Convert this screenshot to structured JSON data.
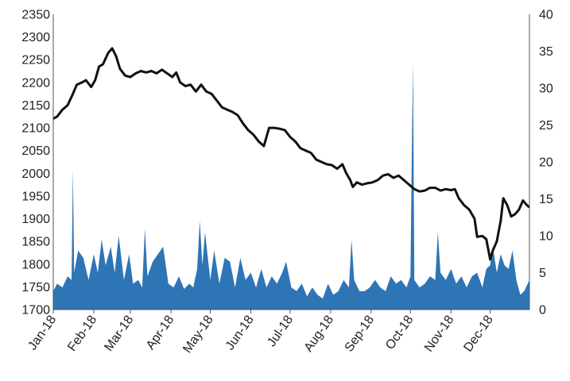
{
  "chart_data": {
    "type": "line+area",
    "title": "",
    "grid": false,
    "colors": {
      "line": "#111111",
      "area": "#2e75b6",
      "axis": "#555555"
    },
    "x_domain": [
      "2018-01-01",
      "2018-12-31"
    ],
    "x_tick_labels": [
      {
        "label": "Jan-18",
        "date": "2018-01-01"
      },
      {
        "label": "Feb-18",
        "date": "2018-02-01"
      },
      {
        "label": "Mar-18",
        "date": "2018-03-01"
      },
      {
        "label": "Apr-18",
        "date": "2018-04-01"
      },
      {
        "label": "May-18",
        "date": "2018-05-01"
      },
      {
        "label": "Jun-18",
        "date": "2018-06-01"
      },
      {
        "label": "Jul-18",
        "date": "2018-07-01"
      },
      {
        "label": "Aug-18",
        "date": "2018-08-01"
      },
      {
        "label": "Sep-18",
        "date": "2018-09-01"
      },
      {
        "label": "Oct-18",
        "date": "2018-10-01"
      },
      {
        "label": "Nov-18",
        "date": "2018-11-01"
      },
      {
        "label": "Dec-18",
        "date": "2018-12-01"
      }
    ],
    "y_left": {
      "ylim": [
        1700,
        2350
      ],
      "ticks": [
        "1700",
        "1750",
        "1800",
        "1850",
        "1900",
        "1950",
        "2000",
        "2050",
        "2100",
        "2150",
        "2200",
        "2250",
        "2300",
        "2350"
      ]
    },
    "y_right": {
      "ylim": [
        0,
        40
      ],
      "ticks": [
        "0",
        "5",
        "10",
        "15",
        "20",
        "25",
        "30",
        "35",
        "40"
      ]
    },
    "series": [
      {
        "kind": "line",
        "axis": "left",
        "points": [
          [
            "2018-01-01",
            2120
          ],
          [
            "2018-01-04",
            2125
          ],
          [
            "2018-01-08",
            2140
          ],
          [
            "2018-01-12",
            2150
          ],
          [
            "2018-01-16",
            2175
          ],
          [
            "2018-01-19",
            2195
          ],
          [
            "2018-01-23",
            2200
          ],
          [
            "2018-01-26",
            2205
          ],
          [
            "2018-01-30",
            2190
          ],
          [
            "2018-02-02",
            2205
          ],
          [
            "2018-02-05",
            2235
          ],
          [
            "2018-02-08",
            2240
          ],
          [
            "2018-02-12",
            2265
          ],
          [
            "2018-02-15",
            2275
          ],
          [
            "2018-02-18",
            2258
          ],
          [
            "2018-02-21",
            2230
          ],
          [
            "2018-02-25",
            2215
          ],
          [
            "2018-03-01",
            2212
          ],
          [
            "2018-03-05",
            2220
          ],
          [
            "2018-03-09",
            2225
          ],
          [
            "2018-03-13",
            2222
          ],
          [
            "2018-03-17",
            2225
          ],
          [
            "2018-03-21",
            2220
          ],
          [
            "2018-03-25",
            2228
          ],
          [
            "2018-03-29",
            2220
          ],
          [
            "2018-04-02",
            2212
          ],
          [
            "2018-04-05",
            2222
          ],
          [
            "2018-04-08",
            2200
          ],
          [
            "2018-04-12",
            2192
          ],
          [
            "2018-04-16",
            2195
          ],
          [
            "2018-04-20",
            2180
          ],
          [
            "2018-04-24",
            2195
          ],
          [
            "2018-04-28",
            2180
          ],
          [
            "2018-05-02",
            2175
          ],
          [
            "2018-05-06",
            2160
          ],
          [
            "2018-05-10",
            2145
          ],
          [
            "2018-05-14",
            2140
          ],
          [
            "2018-05-18",
            2135
          ],
          [
            "2018-05-22",
            2128
          ],
          [
            "2018-05-26",
            2110
          ],
          [
            "2018-05-30",
            2095
          ],
          [
            "2018-06-03",
            2085
          ],
          [
            "2018-06-07",
            2070
          ],
          [
            "2018-06-11",
            2060
          ],
          [
            "2018-06-15",
            2100
          ],
          [
            "2018-06-19",
            2100
          ],
          [
            "2018-06-23",
            2098
          ],
          [
            "2018-06-27",
            2095
          ],
          [
            "2018-07-01",
            2080
          ],
          [
            "2018-07-05",
            2070
          ],
          [
            "2018-07-09",
            2055
          ],
          [
            "2018-07-13",
            2050
          ],
          [
            "2018-07-17",
            2045
          ],
          [
            "2018-07-21",
            2030
          ],
          [
            "2018-07-25",
            2025
          ],
          [
            "2018-07-29",
            2020
          ],
          [
            "2018-08-02",
            2018
          ],
          [
            "2018-08-06",
            2010
          ],
          [
            "2018-08-10",
            2020
          ],
          [
            "2018-08-13",
            2000
          ],
          [
            "2018-08-16",
            1985
          ],
          [
            "2018-08-18",
            1970
          ],
          [
            "2018-08-21",
            1980
          ],
          [
            "2018-08-25",
            1975
          ],
          [
            "2018-08-29",
            1978
          ],
          [
            "2018-09-02",
            1980
          ],
          [
            "2018-09-06",
            1985
          ],
          [
            "2018-09-10",
            1995
          ],
          [
            "2018-09-14",
            1998
          ],
          [
            "2018-09-18",
            1990
          ],
          [
            "2018-09-22",
            1995
          ],
          [
            "2018-09-26",
            1985
          ],
          [
            "2018-09-30",
            1975
          ],
          [
            "2018-10-04",
            1965
          ],
          [
            "2018-10-08",
            1960
          ],
          [
            "2018-10-12",
            1962
          ],
          [
            "2018-10-16",
            1968
          ],
          [
            "2018-10-20",
            1968
          ],
          [
            "2018-10-24",
            1962
          ],
          [
            "2018-10-28",
            1965
          ],
          [
            "2018-11-01",
            1963
          ],
          [
            "2018-11-04",
            1965
          ],
          [
            "2018-11-07",
            1945
          ],
          [
            "2018-11-11",
            1930
          ],
          [
            "2018-11-15",
            1920
          ],
          [
            "2018-11-19",
            1900
          ],
          [
            "2018-11-21",
            1860
          ],
          [
            "2018-11-25",
            1862
          ],
          [
            "2018-11-28",
            1855
          ],
          [
            "2018-12-01",
            1810
          ],
          [
            "2018-12-03",
            1830
          ],
          [
            "2018-12-06",
            1850
          ],
          [
            "2018-12-09",
            1895
          ],
          [
            "2018-12-11",
            1945
          ],
          [
            "2018-12-14",
            1930
          ],
          [
            "2018-12-17",
            1905
          ],
          [
            "2018-12-20",
            1910
          ],
          [
            "2018-12-23",
            1920
          ],
          [
            "2018-12-26",
            1940
          ],
          [
            "2018-12-29",
            1930
          ],
          [
            "2018-12-31",
            1925
          ]
        ]
      },
      {
        "kind": "area",
        "axis": "right",
        "points": [
          [
            "2018-01-01",
            2.5
          ],
          [
            "2018-01-04",
            3.5
          ],
          [
            "2018-01-08",
            3.0
          ],
          [
            "2018-01-12",
            4.5
          ],
          [
            "2018-01-15",
            4.0
          ],
          [
            "2018-01-16",
            19.0
          ],
          [
            "2018-01-17",
            5.0
          ],
          [
            "2018-01-20",
            8.0
          ],
          [
            "2018-01-24",
            7.0
          ],
          [
            "2018-01-28",
            4.0
          ],
          [
            "2018-02-01",
            7.5
          ],
          [
            "2018-02-04",
            5.0
          ],
          [
            "2018-02-07",
            9.5
          ],
          [
            "2018-02-10",
            6.0
          ],
          [
            "2018-02-14",
            8.5
          ],
          [
            "2018-02-17",
            5.0
          ],
          [
            "2018-02-20",
            10.0
          ],
          [
            "2018-02-24",
            4.0
          ],
          [
            "2018-02-28",
            7.5
          ],
          [
            "2018-03-03",
            3.5
          ],
          [
            "2018-03-07",
            4.0
          ],
          [
            "2018-03-10",
            3.0
          ],
          [
            "2018-03-12",
            11.0
          ],
          [
            "2018-03-14",
            4.5
          ],
          [
            "2018-03-18",
            6.5
          ],
          [
            "2018-03-22",
            7.5
          ],
          [
            "2018-03-26",
            8.5
          ],
          [
            "2018-03-30",
            3.5
          ],
          [
            "2018-04-03",
            3.0
          ],
          [
            "2018-04-07",
            4.5
          ],
          [
            "2018-04-11",
            2.8
          ],
          [
            "2018-04-15",
            3.5
          ],
          [
            "2018-04-18",
            3.0
          ],
          [
            "2018-04-21",
            5.5
          ],
          [
            "2018-04-23",
            12.0
          ],
          [
            "2018-04-25",
            6.0
          ],
          [
            "2018-04-27",
            10.5
          ],
          [
            "2018-05-01",
            4.0
          ],
          [
            "2018-05-04",
            8.0
          ],
          [
            "2018-05-08",
            3.5
          ],
          [
            "2018-05-12",
            7.0
          ],
          [
            "2018-05-16",
            6.5
          ],
          [
            "2018-05-20",
            3.0
          ],
          [
            "2018-05-24",
            7.0
          ],
          [
            "2018-05-28",
            4.0
          ],
          [
            "2018-06-01",
            5.0
          ],
          [
            "2018-06-05",
            3.0
          ],
          [
            "2018-06-09",
            5.5
          ],
          [
            "2018-06-13",
            3.0
          ],
          [
            "2018-06-17",
            4.5
          ],
          [
            "2018-06-21",
            3.5
          ],
          [
            "2018-06-25",
            5.0
          ],
          [
            "2018-06-28",
            6.5
          ],
          [
            "2018-07-02",
            3.0
          ],
          [
            "2018-07-06",
            2.5
          ],
          [
            "2018-07-10",
            3.5
          ],
          [
            "2018-07-14",
            1.8
          ],
          [
            "2018-07-18",
            3.0
          ],
          [
            "2018-07-22",
            2.0
          ],
          [
            "2018-07-26",
            1.5
          ],
          [
            "2018-07-30",
            3.5
          ],
          [
            "2018-08-03",
            2.0
          ],
          [
            "2018-08-07",
            2.5
          ],
          [
            "2018-08-11",
            4.0
          ],
          [
            "2018-08-15",
            3.0
          ],
          [
            "2018-08-17",
            9.5
          ],
          [
            "2018-08-19",
            4.0
          ],
          [
            "2018-08-23",
            2.5
          ],
          [
            "2018-08-27",
            2.5
          ],
          [
            "2018-08-31",
            3.0
          ],
          [
            "2018-09-04",
            4.0
          ],
          [
            "2018-09-08",
            3.0
          ],
          [
            "2018-09-12",
            2.5
          ],
          [
            "2018-09-16",
            4.5
          ],
          [
            "2018-09-20",
            3.5
          ],
          [
            "2018-09-24",
            4.0
          ],
          [
            "2018-09-28",
            3.0
          ],
          [
            "2018-10-01",
            4.5
          ],
          [
            "2018-10-02",
            20.0
          ],
          [
            "2018-10-03",
            33.5
          ],
          [
            "2018-10-04",
            4.0
          ],
          [
            "2018-10-08",
            3.0
          ],
          [
            "2018-10-12",
            3.5
          ],
          [
            "2018-10-16",
            4.5
          ],
          [
            "2018-10-20",
            4.0
          ],
          [
            "2018-10-22",
            10.5
          ],
          [
            "2018-10-24",
            5.0
          ],
          [
            "2018-10-28",
            4.0
          ],
          [
            "2018-11-01",
            5.5
          ],
          [
            "2018-11-05",
            3.5
          ],
          [
            "2018-11-09",
            4.5
          ],
          [
            "2018-11-13",
            3.0
          ],
          [
            "2018-11-17",
            4.5
          ],
          [
            "2018-11-21",
            5.0
          ],
          [
            "2018-11-25",
            3.0
          ],
          [
            "2018-11-28",
            5.5
          ],
          [
            "2018-12-01",
            6.0
          ],
          [
            "2018-12-03",
            8.5
          ],
          [
            "2018-12-06",
            5.0
          ],
          [
            "2018-12-09",
            7.5
          ],
          [
            "2018-12-12",
            6.0
          ],
          [
            "2018-12-15",
            5.5
          ],
          [
            "2018-12-18",
            8.0
          ],
          [
            "2018-12-21",
            4.0
          ],
          [
            "2018-12-24",
            2.0
          ],
          [
            "2018-12-27",
            2.5
          ],
          [
            "2018-12-31",
            4.0
          ]
        ]
      }
    ]
  }
}
